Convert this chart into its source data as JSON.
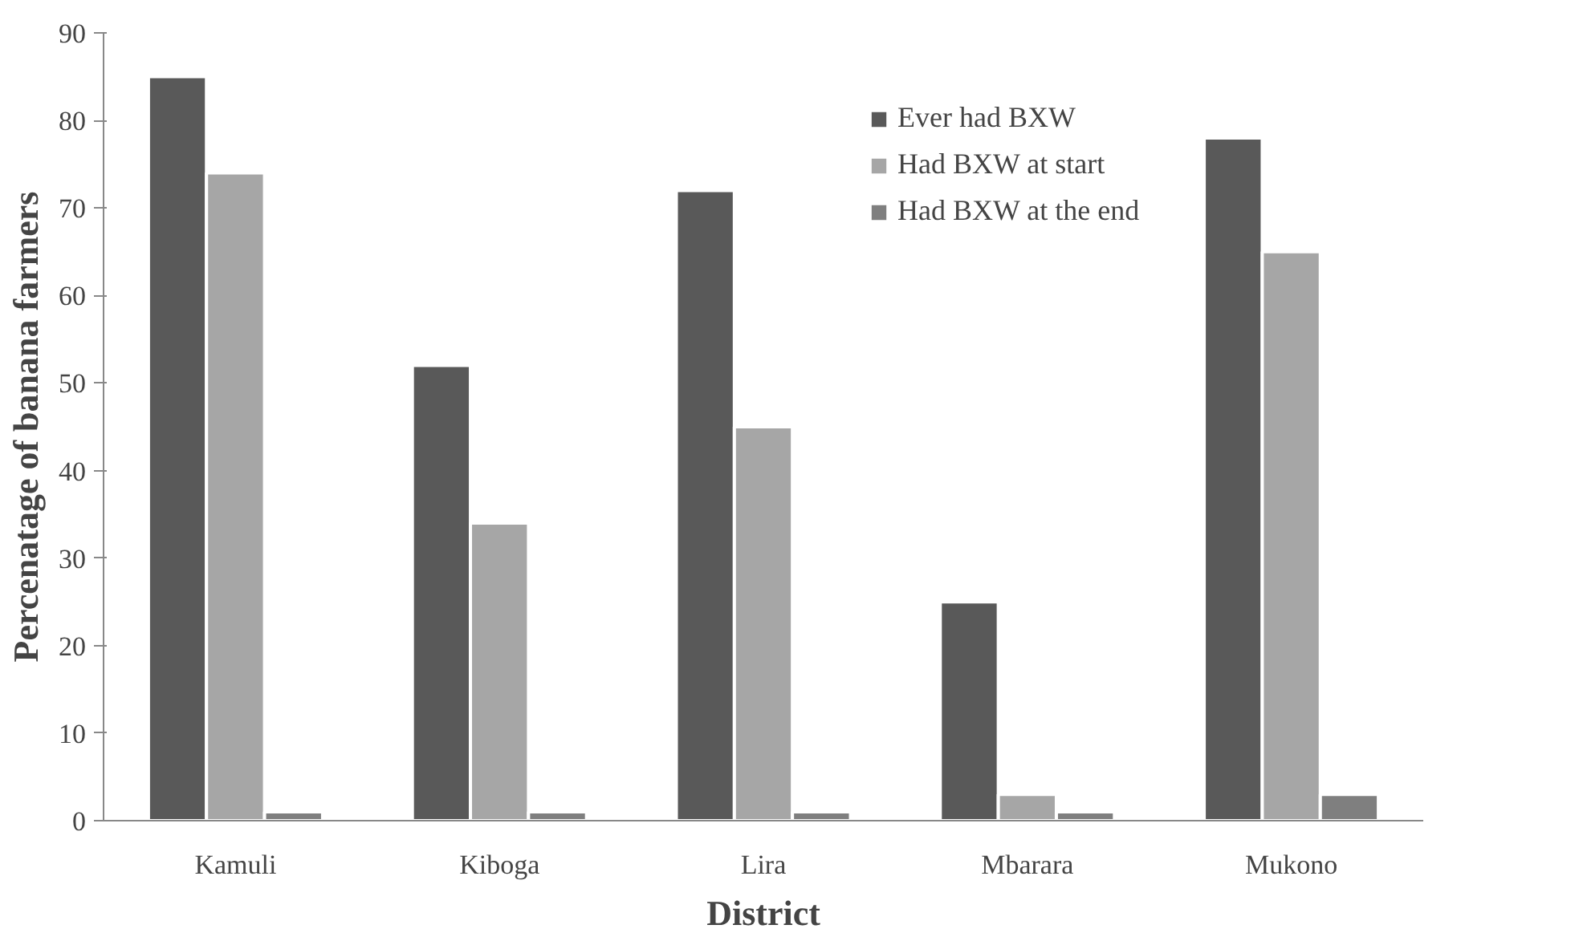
{
  "chart_data": {
    "type": "bar",
    "xlabel": "District",
    "ylabel": "Percenatage of banana farmers",
    "categories": [
      "Kamuli",
      "Kiboga",
      "Lira",
      "Mbarara",
      "Mukono"
    ],
    "series": [
      {
        "name": "Ever had BXW",
        "color": "#595959",
        "values": [
          85,
          52,
          72,
          25,
          78
        ]
      },
      {
        "name": "Had BXW at start",
        "color": "#a6a6a6",
        "values": [
          74,
          34,
          45,
          3,
          65
        ]
      },
      {
        "name": "Had BXW at the end",
        "color": "#7f7f7f",
        "values": [
          1,
          1,
          1,
          1,
          3
        ]
      }
    ],
    "ylim": [
      0,
      90
    ],
    "yticks": [
      0,
      10,
      20,
      30,
      40,
      50,
      60,
      70,
      80,
      90
    ],
    "grid": false,
    "legend": "top right"
  }
}
